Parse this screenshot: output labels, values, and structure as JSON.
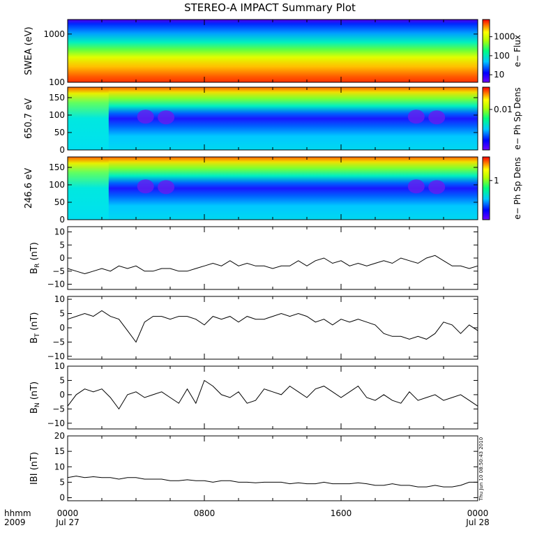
{
  "title": "STEREO-A IMPACT Summary Plot",
  "stamp": "Thu Jun 10 08:50:43 2010",
  "x_axis": {
    "label_line1": "hhmm",
    "label_line2": "2009",
    "ticks": [
      {
        "time": "0000",
        "date": "Jul 27",
        "hour": 0
      },
      {
        "time": "0800",
        "date": "",
        "hour": 8
      },
      {
        "time": "1600",
        "date": "",
        "hour": 16
      },
      {
        "time": "0000",
        "date": "Jul 28",
        "hour": 24
      }
    ]
  },
  "chart_data": [
    {
      "type": "heatmap",
      "ylabel": "SWEA (eV)",
      "yscale": "log",
      "ylim": [
        100,
        2000
      ],
      "yticks": [
        {
          "v": 1000,
          "label": "1000"
        },
        {
          "v": 100,
          "label": "100"
        }
      ],
      "colorbar": {
        "label": "e− Flux",
        "scale": "log",
        "range": [
          4,
          8000
        ],
        "ticks": [
          {
            "v": 1000,
            "label": "1000"
          },
          {
            "v": 100,
            "label": "100"
          },
          {
            "v": 10,
            "label": "10"
          }
        ]
      },
      "description_profile": "flux decreasing with energy; ~3000 at 100 eV, ~5 at 2000 eV"
    },
    {
      "type": "heatmap",
      "ylabel": "650.7 eV",
      "ylim": [
        0,
        180
      ],
      "yticks": [
        {
          "v": 0,
          "label": "0"
        },
        {
          "v": 50,
          "label": "50"
        },
        {
          "v": 100,
          "label": "100"
        },
        {
          "v": 150,
          "label": "150"
        }
      ],
      "colorbar": {
        "label": "e− Ph Sp Dens",
        "scale": "log",
        "range": [
          0.0008,
          0.04
        ],
        "ticks": [
          {
            "v": 0.01,
            "label": "0.01"
          }
        ]
      },
      "beam_angle": 170,
      "minimum_angle": 95
    },
    {
      "type": "heatmap",
      "ylabel": "246.6 eV",
      "ylim": [
        0,
        180
      ],
      "yticks": [
        {
          "v": 0,
          "label": "0"
        },
        {
          "v": 50,
          "label": "50"
        },
        {
          "v": 100,
          "label": "100"
        },
        {
          "v": 150,
          "label": "150"
        }
      ],
      "colorbar": {
        "label": "e− Ph Sp Dens",
        "scale": "log",
        "range": [
          0.1,
          4
        ],
        "ticks": [
          {
            "v": 1,
            "label": "1"
          }
        ]
      },
      "beam_angle": 170,
      "minimum_angle": 90
    },
    {
      "type": "line",
      "ylabel": "B",
      "ylabel_sub": "R",
      "ylabel_unit": "(nT)",
      "ylim": [
        -12,
        12
      ],
      "yticks": [
        {
          "v": -10,
          "label": "−10"
        },
        {
          "v": -5,
          "label": "−5"
        },
        {
          "v": 0,
          "label": "0"
        },
        {
          "v": 5,
          "label": "5"
        },
        {
          "v": 10,
          "label": "10"
        }
      ],
      "x": [
        0,
        0.5,
        1,
        1.5,
        2,
        2.5,
        3,
        3.5,
        4,
        4.5,
        5,
        5.5,
        6,
        6.5,
        7,
        7.5,
        8,
        8.5,
        9,
        9.5,
        10,
        10.5,
        11,
        11.5,
        12,
        12.5,
        13,
        13.5,
        14,
        14.5,
        15,
        15.5,
        16,
        16.5,
        17,
        17.5,
        18,
        18.5,
        19,
        19.5,
        20,
        20.5,
        21,
        21.5,
        22,
        22.5,
        23,
        23.5,
        24
      ],
      "y": [
        -4,
        -5,
        -6,
        -5,
        -4,
        -5,
        -3,
        -4,
        -3,
        -5,
        -5,
        -4,
        -4,
        -5,
        -5,
        -4,
        -3,
        -2,
        -3,
        -1,
        -3,
        -2,
        -3,
        -3,
        -4,
        -3,
        -3,
        -1,
        -3,
        -1,
        0,
        -2,
        -1,
        -3,
        -2,
        -3,
        -2,
        -1,
        -2,
        0,
        -1,
        -2,
        0,
        1,
        -1,
        -3,
        -3,
        -4,
        -3
      ]
    },
    {
      "type": "line",
      "ylabel": "B",
      "ylabel_sub": "T",
      "ylabel_unit": "(nT)",
      "ylim": [
        -11,
        11
      ],
      "yticks": [
        {
          "v": -10,
          "label": "−10"
        },
        {
          "v": -5,
          "label": "−5"
        },
        {
          "v": 0,
          "label": "0"
        },
        {
          "v": 5,
          "label": "5"
        },
        {
          "v": 10,
          "label": "10"
        }
      ],
      "x": [
        0,
        0.5,
        1,
        1.5,
        2,
        2.5,
        3,
        3.5,
        4,
        4.5,
        5,
        5.5,
        6,
        6.5,
        7,
        7.5,
        8,
        8.5,
        9,
        9.5,
        10,
        10.5,
        11,
        11.5,
        12,
        12.5,
        13,
        13.5,
        14,
        14.5,
        15,
        15.5,
        16,
        16.5,
        17,
        17.5,
        18,
        18.5,
        19,
        19.5,
        20,
        20.5,
        21,
        21.5,
        22,
        22.5,
        23,
        23.5,
        24
      ],
      "y": [
        3,
        4,
        5,
        4,
        6,
        4,
        3,
        -1,
        -5,
        2,
        4,
        4,
        3,
        4,
        4,
        3,
        1,
        4,
        3,
        4,
        2,
        4,
        3,
        3,
        4,
        5,
        4,
        5,
        4,
        2,
        3,
        1,
        3,
        2,
        3,
        2,
        1,
        -2,
        -3,
        -3,
        -4,
        -3,
        -4,
        -2,
        2,
        1,
        -2,
        1,
        -1
      ]
    },
    {
      "type": "line",
      "ylabel": "B",
      "ylabel_sub": "N",
      "ylabel_unit": "(nT)",
      "ylim": [
        -12,
        10
      ],
      "yticks": [
        {
          "v": -10,
          "label": "−10"
        },
        {
          "v": -5,
          "label": "−5"
        },
        {
          "v": 0,
          "label": "0"
        },
        {
          "v": 5,
          "label": "5"
        },
        {
          "v": 10,
          "label": "10"
        }
      ],
      "x": [
        0,
        0.5,
        1,
        1.5,
        2,
        2.5,
        3,
        3.5,
        4,
        4.5,
        5,
        5.5,
        6,
        6.5,
        7,
        7.5,
        8,
        8.5,
        9,
        9.5,
        10,
        10.5,
        11,
        11.5,
        12,
        12.5,
        13,
        13.5,
        14,
        14.5,
        15,
        15.5,
        16,
        16.5,
        17,
        17.5,
        18,
        18.5,
        19,
        19.5,
        20,
        20.5,
        21,
        21.5,
        22,
        22.5,
        23,
        23.5,
        24
      ],
      "y": [
        -4,
        0,
        2,
        1,
        2,
        -1,
        -5,
        0,
        1,
        -1,
        0,
        1,
        -1,
        -3,
        2,
        -3,
        5,
        3,
        0,
        -1,
        1,
        -3,
        -2,
        2,
        1,
        0,
        3,
        1,
        -1,
        2,
        3,
        1,
        -1,
        1,
        3,
        -1,
        -2,
        0,
        -2,
        -3,
        1,
        -2,
        -1,
        0,
        -2,
        -1,
        0,
        -2,
        -4
      ]
    },
    {
      "type": "line",
      "ylabel": "IBI",
      "ylabel_sub": "",
      "ylabel_unit": "(nT)",
      "ylim": [
        -1,
        20
      ],
      "yticks": [
        {
          "v": 0,
          "label": "0"
        },
        {
          "v": 5,
          "label": "5"
        },
        {
          "v": 10,
          "label": "10"
        },
        {
          "v": 15,
          "label": "15"
        },
        {
          "v": 20,
          "label": "20"
        }
      ],
      "x": [
        0,
        0.5,
        1,
        1.5,
        2,
        2.5,
        3,
        3.5,
        4,
        4.5,
        5,
        5.5,
        6,
        6.5,
        7,
        7.5,
        8,
        8.5,
        9,
        9.5,
        10,
        10.5,
        11,
        11.5,
        12,
        12.5,
        13,
        13.5,
        14,
        14.5,
        15,
        15.5,
        16,
        16.5,
        17,
        17.5,
        18,
        18.5,
        19,
        19.5,
        20,
        20.5,
        21,
        21.5,
        22,
        22.5,
        23,
        23.5,
        24
      ],
      "y": [
        6.5,
        7,
        6.5,
        6.8,
        6.5,
        6.5,
        6,
        6.5,
        6.5,
        6,
        6,
        6,
        5.5,
        5.5,
        5.8,
        5.5,
        5.5,
        5,
        5.5,
        5.5,
        5,
        5,
        4.8,
        5,
        5,
        5,
        4.5,
        4.8,
        4.5,
        4.5,
        5,
        4.5,
        4.5,
        4.5,
        4.8,
        4.5,
        4,
        4,
        4.5,
        4,
        4,
        3.5,
        3.5,
        4,
        3.5,
        3.5,
        4,
        5,
        5
      ]
    }
  ]
}
